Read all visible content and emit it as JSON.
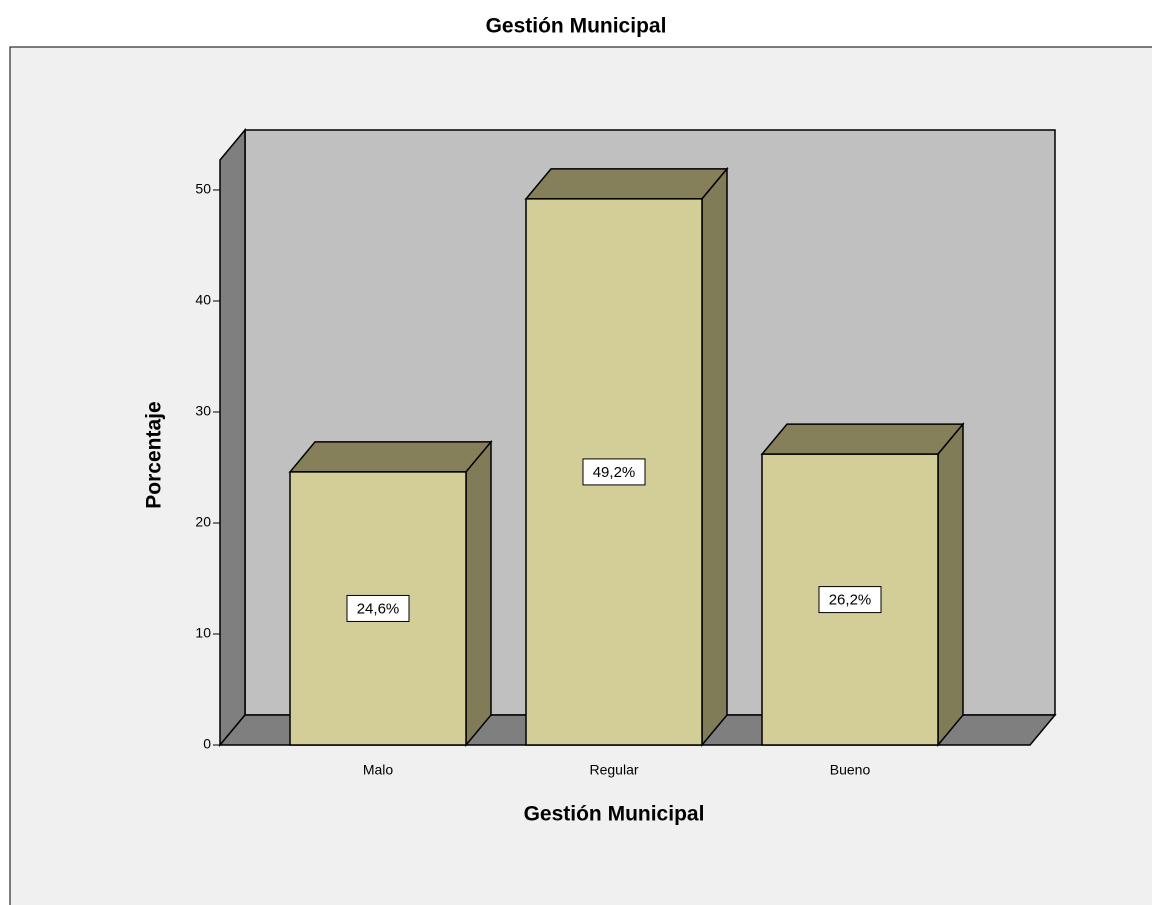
{
  "chart_data": {
    "type": "bar3d",
    "title": "Gestión Municipal",
    "x_label": "Gestión Municipal",
    "y_label": "Porcentaje",
    "categories": [
      "Malo",
      "Regular",
      "Bueno"
    ],
    "values": [
      24.6,
      49.2,
      26.2
    ],
    "value_labels": [
      "24,6%",
      "49,2%",
      "26,2%"
    ],
    "color": "#d3cd98",
    "ylim": [
      0,
      52.7
    ],
    "yticks": [
      0,
      10,
      20,
      30,
      40,
      50
    ]
  }
}
